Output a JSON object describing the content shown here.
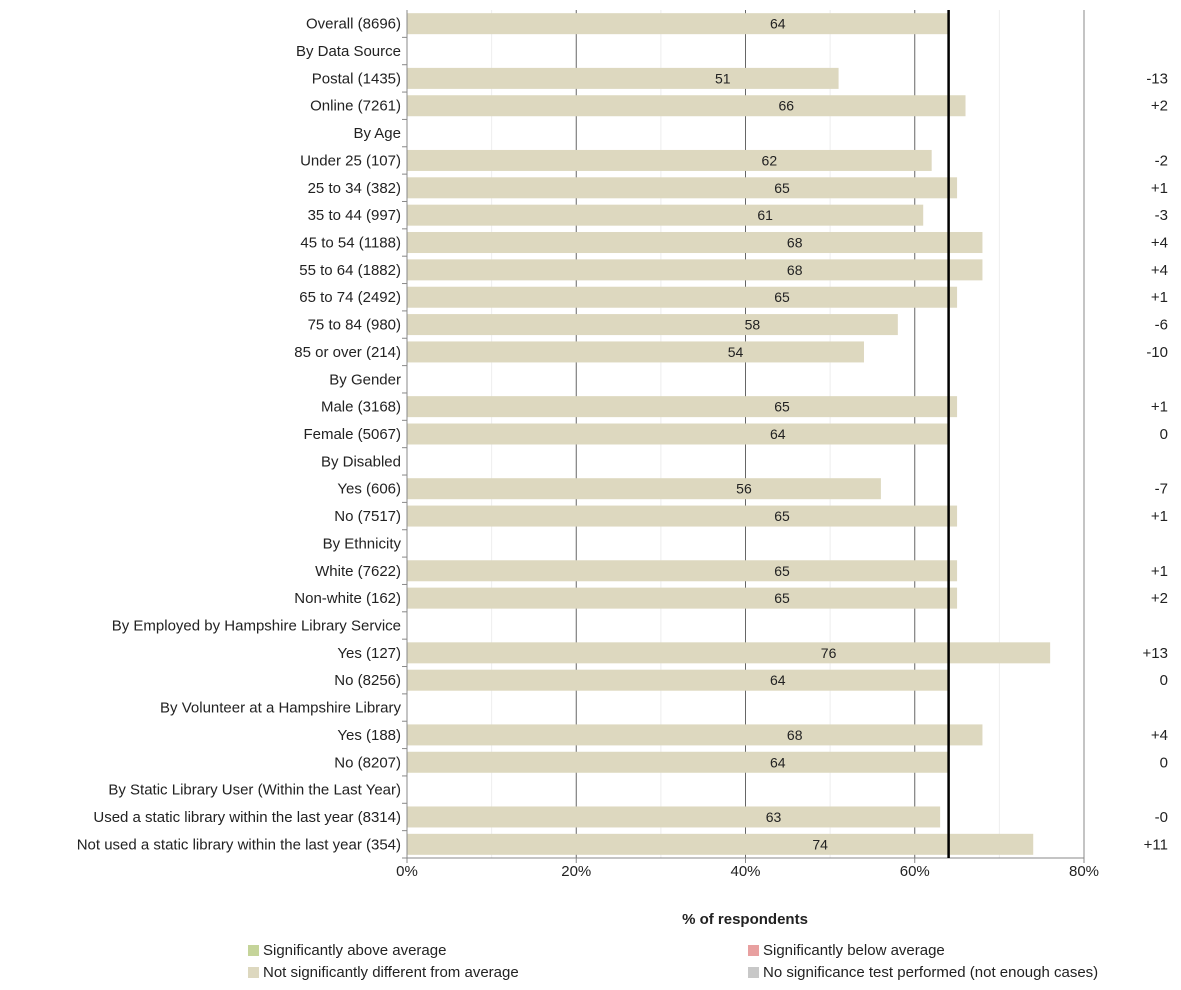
{
  "chart_data": {
    "type": "bar",
    "orientation": "horizontal",
    "xlabel": "% of respondents",
    "xlim": [
      0,
      80
    ],
    "x_ticks": [
      "0%",
      "20%",
      "40%",
      "60%",
      "80%"
    ],
    "average_line": 64,
    "grid": true,
    "rows": [
      {
        "label": "Overall (8696)",
        "value": 64,
        "diff": ""
      },
      {
        "label": "By Data Source",
        "value": null,
        "diff": ""
      },
      {
        "label": "Postal (1435)",
        "value": 51,
        "diff": "-13"
      },
      {
        "label": "Online (7261)",
        "value": 66,
        "diff": "+2"
      },
      {
        "label": "By Age",
        "value": null,
        "diff": ""
      },
      {
        "label": "Under 25 (107)",
        "value": 62,
        "diff": "-2"
      },
      {
        "label": "25 to 34 (382)",
        "value": 65,
        "diff": "+1"
      },
      {
        "label": "35 to 44 (997)",
        "value": 61,
        "diff": "-3"
      },
      {
        "label": "45 to 54 (1188)",
        "value": 68,
        "diff": "+4"
      },
      {
        "label": "55 to 64 (1882)",
        "value": 68,
        "diff": "+4"
      },
      {
        "label": "65 to 74 (2492)",
        "value": 65,
        "diff": "+1"
      },
      {
        "label": "75 to 84 (980)",
        "value": 58,
        "diff": "-6"
      },
      {
        "label": "85 or over (214)",
        "value": 54,
        "diff": "-10"
      },
      {
        "label": "By Gender",
        "value": null,
        "diff": ""
      },
      {
        "label": "Male (3168)",
        "value": 65,
        "diff": "+1"
      },
      {
        "label": "Female (5067)",
        "value": 64,
        "diff": "0"
      },
      {
        "label": "By Disabled",
        "value": null,
        "diff": ""
      },
      {
        "label": "Yes (606)",
        "value": 56,
        "diff": "-7"
      },
      {
        "label": "No (7517)",
        "value": 65,
        "diff": "+1"
      },
      {
        "label": "By Ethnicity",
        "value": null,
        "diff": ""
      },
      {
        "label": "White (7622)",
        "value": 65,
        "diff": "+1"
      },
      {
        "label": "Non-white (162)",
        "value": 65,
        "diff": "+2"
      },
      {
        "label": "By Employed by Hampshire Library Service",
        "value": null,
        "diff": ""
      },
      {
        "label": "Yes (127)",
        "value": 76,
        "diff": "+13"
      },
      {
        "label": "No (8256)",
        "value": 64,
        "diff": "0"
      },
      {
        "label": "By Volunteer at a Hampshire Library",
        "value": null,
        "diff": ""
      },
      {
        "label": "Yes (188)",
        "value": 68,
        "diff": "+4"
      },
      {
        "label": "No (8207)",
        "value": 64,
        "diff": "0"
      },
      {
        "label": "By Static Library User (Within the Last Year)",
        "value": null,
        "diff": ""
      },
      {
        "label": "Used a static library within the last year (8314)",
        "value": 63,
        "diff": "-0"
      },
      {
        "label": "Not used a static library within the last year (354)",
        "value": 74,
        "diff": "+11"
      }
    ],
    "legend": [
      {
        "label": "Significantly above average",
        "color": "#c5d49a"
      },
      {
        "label": "Significantly below average",
        "color": "#e8a0a0"
      },
      {
        "label": "Not significantly different from average",
        "color": "#ddd8bf"
      },
      {
        "label": "No significance test performed (not enough cases)",
        "color": "#c8c8c8"
      }
    ],
    "bar_color": "#ddd8bf",
    "legend_placement": "bottom"
  }
}
